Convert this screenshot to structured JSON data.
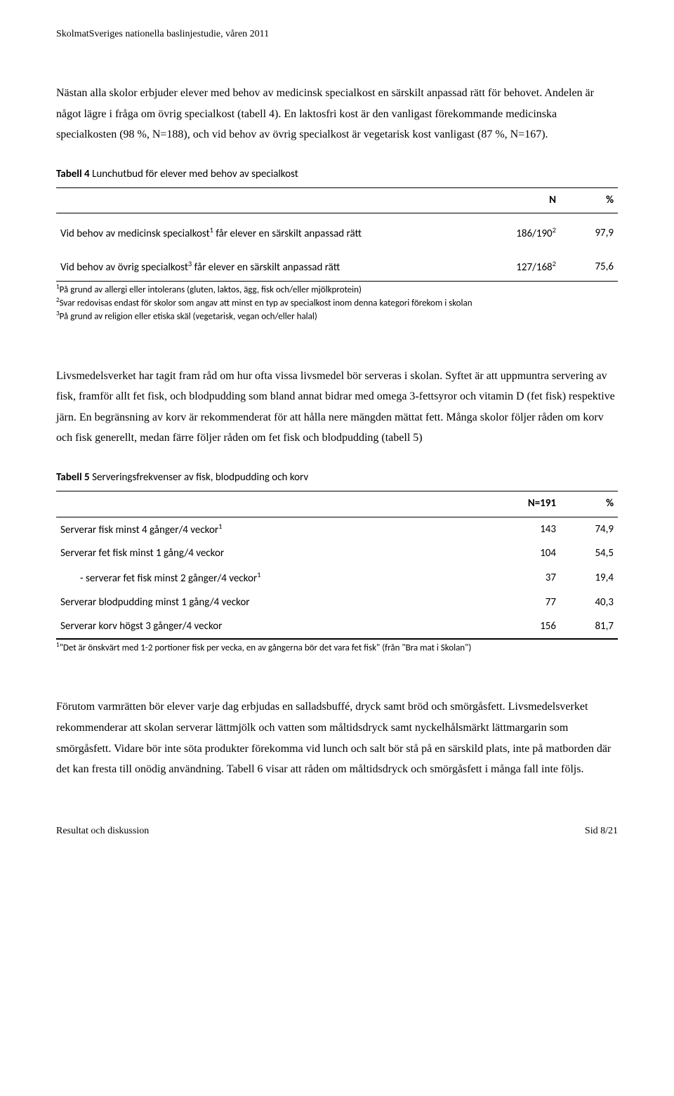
{
  "header": "SkolmatSveriges nationella baslinjestudie, våren 2011",
  "para1_a": "Nästan alla skolor erbjuder elever med behov av medicinsk specialkost en särskilt anpassad rätt för behovet. Andelen är något lägre i fråga om övrig specialkost (tabell 4). En laktosfri kost är den vanligast förekommande medicinska specialkosten (98 %, N=188), och vid behov av övrig specialkost är vegetarisk kost vanligast (87 %, N=167).",
  "table4": {
    "title_prefix": "Tabell 4",
    "title_rest": " Lunchutbud för elever med behov av specialkost",
    "head_N": "N",
    "head_pct": "%",
    "row1_label_a": "Vid behov av medicinsk specialkost",
    "row1_label_b": " får elever en särskilt anpassad rätt",
    "row1_N": "186/190",
    "row1_pct": "97,9",
    "row2_label_a": "Vid behov av övrig specialkost",
    "row2_label_b": " får elever en särskilt anpassad rätt",
    "row2_N": "127/168",
    "row2_pct": "75,6",
    "fn1": "På grund av allergi eller intolerans (gluten, laktos, ägg, fisk och/eller mjölkprotein)",
    "fn2": "Svar redovisas endast för skolor som angav att minst en typ av specialkost inom denna kategori förekom i skolan",
    "fn3": "På grund av religion eller etiska skäl (vegetarisk, vegan och/eller halal)"
  },
  "para2": "Livsmedelsverket har tagit fram råd om hur ofta vissa livsmedel bör serveras i skolan. Syftet är att uppmuntra servering av fisk, framför allt fet fisk, och blodpudding som bland annat bidrar med omega 3-fettsyror och vitamin D (fet fisk) respektive järn. En begränsning av korv är rekommenderat för att hålla nere mängden mättat fett. Många skolor följer råden om korv och fisk generellt, medan färre följer råden om fet fisk och blodpudding (tabell 5)",
  "table5": {
    "title_prefix": "Tabell 5",
    "title_rest": " Serveringsfrekvenser av fisk, blodpudding och korv",
    "head_N": "N=191",
    "head_pct": "%",
    "rows": [
      {
        "label": "Serverar fisk minst 4 gånger/4 veckor",
        "sup": "1",
        "n": "143",
        "pct": "74,9"
      },
      {
        "label": "Serverar fet fisk minst 1 gång/4 veckor",
        "sup": "",
        "n": "104",
        "pct": "54,5"
      },
      {
        "label": "-    serverar fet fisk minst 2 gånger/4 veckor",
        "sup": "1",
        "indent": true,
        "n": "37",
        "pct": "19,4"
      },
      {
        "label": "Serverar blodpudding minst 1 gång/4 veckor",
        "sup": "",
        "n": "77",
        "pct": "40,3"
      },
      {
        "label": "Serverar korv högst 3 gånger/4 veckor",
        "sup": "",
        "n": "156",
        "pct": "81,7"
      }
    ],
    "fn1": "\"Det är önskvärt med 1-2 portioner fisk per vecka, en av gångerna bör det vara fet fisk\" (från \"Bra mat i Skolan\")"
  },
  "para3": "Förutom varmrätten bör elever varje dag erbjudas en salladsbuffé, dryck samt bröd och smörgåsfett. Livsmedelsverket rekommenderar att skolan serverar lättmjölk och vatten som måltidsdryck samt nyckelhålsmärkt lättmargarin som smörgåsfett. Vidare bör inte söta produkter förekomma vid lunch och salt bör stå på en särskild plats, inte på matborden där det kan fresta till onödig användning. Tabell 6 visar att råden om måltidsdryck och smörgåsfett i många fall inte följs.",
  "footer_left": "Resultat och diskussion",
  "footer_right": "Sid 8/21"
}
